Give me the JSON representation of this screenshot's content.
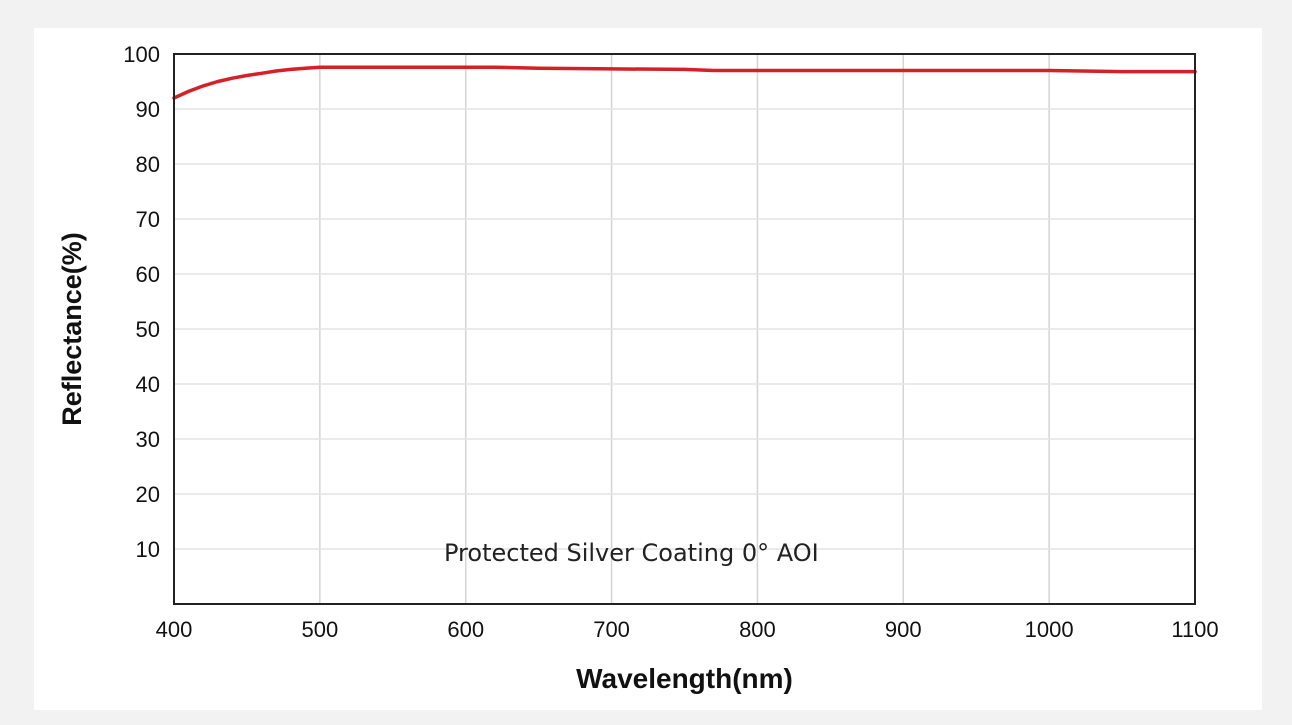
{
  "chart_data": {
    "type": "line",
    "xlabel": "Wavelength(nm)",
    "ylabel": "Reflectance(%)",
    "annotation": "Protected Silver Coating  0°  AOI",
    "xlim": [
      400,
      1100
    ],
    "ylim": [
      0,
      100
    ],
    "xticks": [
      400,
      500,
      600,
      700,
      800,
      900,
      1000,
      1100
    ],
    "yticks": [
      10,
      20,
      30,
      40,
      50,
      60,
      70,
      80,
      90,
      100
    ],
    "grid": true,
    "legend": "none",
    "series": [
      {
        "color": "#d42027",
        "x": [
          400,
          410,
          420,
          430,
          440,
          450,
          460,
          470,
          480,
          490,
          500,
          550,
          600,
          620,
          650,
          700,
          750,
          770,
          800,
          900,
          1000,
          1050,
          1100
        ],
        "y": [
          92.0,
          93.2,
          94.2,
          95.0,
          95.6,
          96.1,
          96.5,
          96.9,
          97.2,
          97.4,
          97.6,
          97.6,
          97.6,
          97.6,
          97.4,
          97.3,
          97.2,
          97.0,
          97.0,
          97.0,
          97.0,
          96.8,
          96.8
        ]
      }
    ]
  }
}
